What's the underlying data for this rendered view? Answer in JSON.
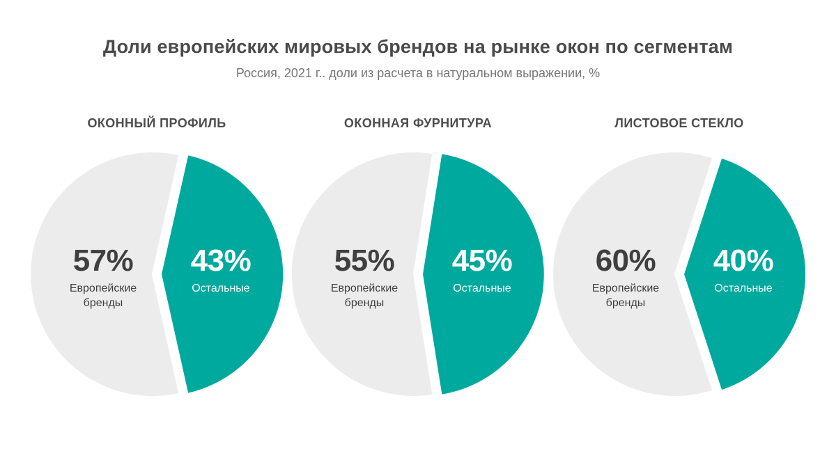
{
  "header": {
    "title": "Доли европейских мировых брендов на рынке окон по сегментам",
    "subtitle": "Россия, 2021 г.. доли из расчета в натуральном выражении, %"
  },
  "colors": {
    "highlight_teal": "#00a99d",
    "muted_gray": "#ececec",
    "dark_text": "#3f3f3f",
    "white_text": "#ffffff"
  },
  "chart_data": [
    {
      "type": "pie",
      "title": "ОКОННЫЙ ПРОФИЛЬ",
      "legend_position": "inside",
      "slices": [
        {
          "label": "Европейские бренды",
          "value": 57,
          "display": "57%",
          "color": "#ececec",
          "text_color": "#3f3f3f"
        },
        {
          "label": "Остальные",
          "value": 43,
          "display": "43%",
          "color": "#00a99d",
          "text_color": "#ffffff"
        }
      ]
    },
    {
      "type": "pie",
      "title": "ОКОННАЯ ФУРНИТУРА",
      "legend_position": "inside",
      "slices": [
        {
          "label": "Европейские бренды",
          "value": 55,
          "display": "55%",
          "color": "#ececec",
          "text_color": "#3f3f3f"
        },
        {
          "label": "Остальные",
          "value": 45,
          "display": "45%",
          "color": "#00a99d",
          "text_color": "#ffffff"
        }
      ]
    },
    {
      "type": "pie",
      "title": "ЛИСТОВОЕ СТЕКЛО",
      "legend_position": "inside",
      "slices": [
        {
          "label": "Европейские бренды",
          "value": 60,
          "display": "60%",
          "color": "#ececec",
          "text_color": "#3f3f3f"
        },
        {
          "label": "Остальные",
          "value": 40,
          "display": "40%",
          "color": "#00a99d",
          "text_color": "#ffffff"
        }
      ]
    }
  ]
}
